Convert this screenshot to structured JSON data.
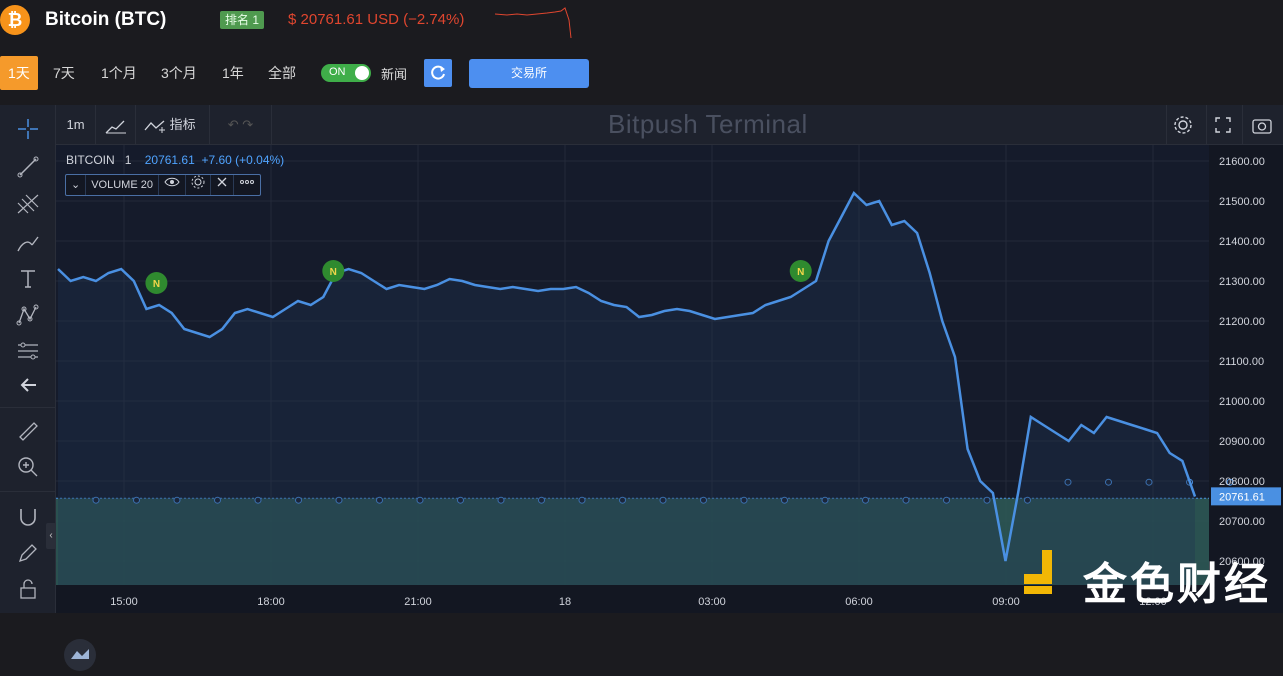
{
  "header": {
    "coin_icon_symbol": "₿",
    "title": "Bitcoin (BTC)",
    "rank": "排名 1",
    "price_change": "$ 20761.61 USD (−2.74%)",
    "price_color": "#e0462f"
  },
  "range": {
    "buttons": [
      "1天",
      "7天",
      "1个月",
      "3个月",
      "1年",
      "全部"
    ],
    "active": "1天",
    "toggle_label": "ON",
    "news_label": "新闻",
    "refresh_icon": "refresh-icon",
    "exchange_label": "交易所"
  },
  "toolbar": {
    "interval": "1m",
    "indicators_label": "指标",
    "brand": "Bitpush Terminal"
  },
  "legend": {
    "symbol": "BITCOIN",
    "interval": "1",
    "value": "20761.61",
    "change": "+7.60 (+0.04%)",
    "volume_label": "VOLUME 20"
  },
  "watermark": {
    "text": "金色财经"
  },
  "chart_data": {
    "type": "line",
    "series": [
      {
        "values": [
          21330,
          21300,
          21310,
          21300,
          21320,
          21330,
          21300,
          21230,
          21240,
          21220,
          21180,
          21170,
          21160,
          21180,
          21220,
          21230,
          21220,
          21210,
          21230,
          21250,
          21240,
          21260,
          21320,
          21330,
          21320,
          21300,
          21280,
          21290,
          21285,
          21280,
          21290,
          21305,
          21300,
          21290,
          21285,
          21280,
          21285,
          21280,
          21275,
          21280,
          21280,
          21285,
          21270,
          21250,
          21240,
          21235,
          21210,
          21215,
          21225,
          21230,
          21225,
          21215,
          21205,
          21210,
          21215,
          21220,
          21240,
          21250,
          21260,
          21280,
          21300,
          21400,
          21460,
          21520,
          21490,
          21500,
          21440,
          21450,
          21420,
          21320,
          21200,
          21110,
          20880,
          20800,
          20770,
          20600,
          20770,
          20960,
          20940,
          20920,
          20900,
          20940,
          20920,
          20960,
          20950,
          20940,
          20930,
          20920,
          20870,
          20850,
          20761
        ]
      }
    ],
    "x_ticks": [
      "15:00",
      "18:00",
      "21:00",
      "18",
      "03:00",
      "06:00",
      "09:00",
      "12:00"
    ],
    "y_ticks": [
      "21600.00",
      "21500.00",
      "21400.00",
      "21300.00",
      "21200.00",
      "21100.00",
      "21000.00",
      "20900.00",
      "20800.00",
      "20700.00",
      "20600.00"
    ],
    "ylim": [
      20540,
      21640
    ],
    "current_price_label": "20761.61",
    "news_markers": [
      {
        "label": "N",
        "index": 7
      },
      {
        "label": "N",
        "index": 21
      },
      {
        "label": "N",
        "index": 58
      }
    ],
    "line_color": "#4a90e2",
    "grid": true
  }
}
